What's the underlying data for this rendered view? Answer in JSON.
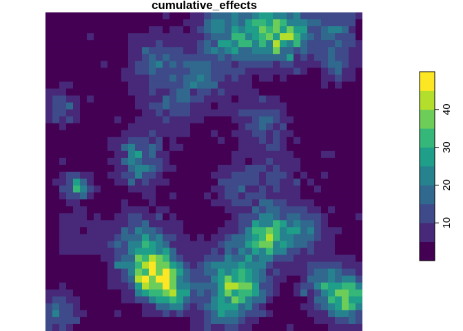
{
  "chart_data": {
    "type": "heatmap",
    "title": "cumulative_effects",
    "colorscale": "viridis",
    "legend": {
      "position": "right",
      "ticks": [
        10,
        20,
        30,
        40
      ],
      "breaks": [
        0,
        5,
        10,
        15,
        20,
        25,
        30,
        35,
        40,
        45,
        50
      ],
      "colors": [
        "#440154",
        "#482878",
        "#3E4A89",
        "#31688E",
        "#26828E",
        "#1F9E89",
        "#35B779",
        "#6DCD59",
        "#B4DE2C",
        "#FDE725"
      ]
    },
    "grid": {
      "ncols": 46,
      "nrows": 46,
      "background_value": 2,
      "hotspots": [
        {
          "x": 0.6,
          "y": 0.06,
          "peak": 30,
          "spread": 0.07
        },
        {
          "x": 0.75,
          "y": 0.07,
          "peak": 38,
          "spread": 0.06
        },
        {
          "x": 0.92,
          "y": 0.06,
          "peak": 18,
          "spread": 0.05
        },
        {
          "x": 0.35,
          "y": 0.15,
          "peak": 16,
          "spread": 0.06
        },
        {
          "x": 0.5,
          "y": 0.2,
          "peak": 14,
          "spread": 0.06
        },
        {
          "x": 0.92,
          "y": 0.17,
          "peak": 14,
          "spread": 0.04
        },
        {
          "x": 0.05,
          "y": 0.3,
          "peak": 14,
          "spread": 0.04
        },
        {
          "x": 0.4,
          "y": 0.3,
          "peak": 12,
          "spread": 0.06
        },
        {
          "x": 0.68,
          "y": 0.34,
          "peak": 14,
          "spread": 0.06
        },
        {
          "x": 0.3,
          "y": 0.46,
          "peak": 26,
          "spread": 0.05
        },
        {
          "x": 0.1,
          "y": 0.55,
          "peak": 28,
          "spread": 0.03
        },
        {
          "x": 0.6,
          "y": 0.54,
          "peak": 12,
          "spread": 0.05
        },
        {
          "x": 0.73,
          "y": 0.5,
          "peak": 10,
          "spread": 0.06
        },
        {
          "x": 0.7,
          "y": 0.7,
          "peak": 34,
          "spread": 0.06
        },
        {
          "x": 0.82,
          "y": 0.68,
          "peak": 16,
          "spread": 0.05
        },
        {
          "x": 0.3,
          "y": 0.73,
          "peak": 22,
          "spread": 0.07
        },
        {
          "x": 0.34,
          "y": 0.82,
          "peak": 46,
          "spread": 0.05
        },
        {
          "x": 0.4,
          "y": 0.88,
          "peak": 36,
          "spread": 0.04
        },
        {
          "x": 0.58,
          "y": 0.82,
          "peak": 22,
          "spread": 0.07
        },
        {
          "x": 0.62,
          "y": 0.88,
          "peak": 26,
          "spread": 0.05
        },
        {
          "x": 0.55,
          "y": 0.95,
          "peak": 16,
          "spread": 0.05
        },
        {
          "x": 0.96,
          "y": 0.9,
          "peak": 36,
          "spread": 0.05
        },
        {
          "x": 0.88,
          "y": 0.85,
          "peak": 22,
          "spread": 0.05
        },
        {
          "x": 0.03,
          "y": 0.95,
          "peak": 18,
          "spread": 0.05
        },
        {
          "x": 0.1,
          "y": 0.7,
          "peak": 8,
          "spread": 0.05
        }
      ]
    }
  }
}
